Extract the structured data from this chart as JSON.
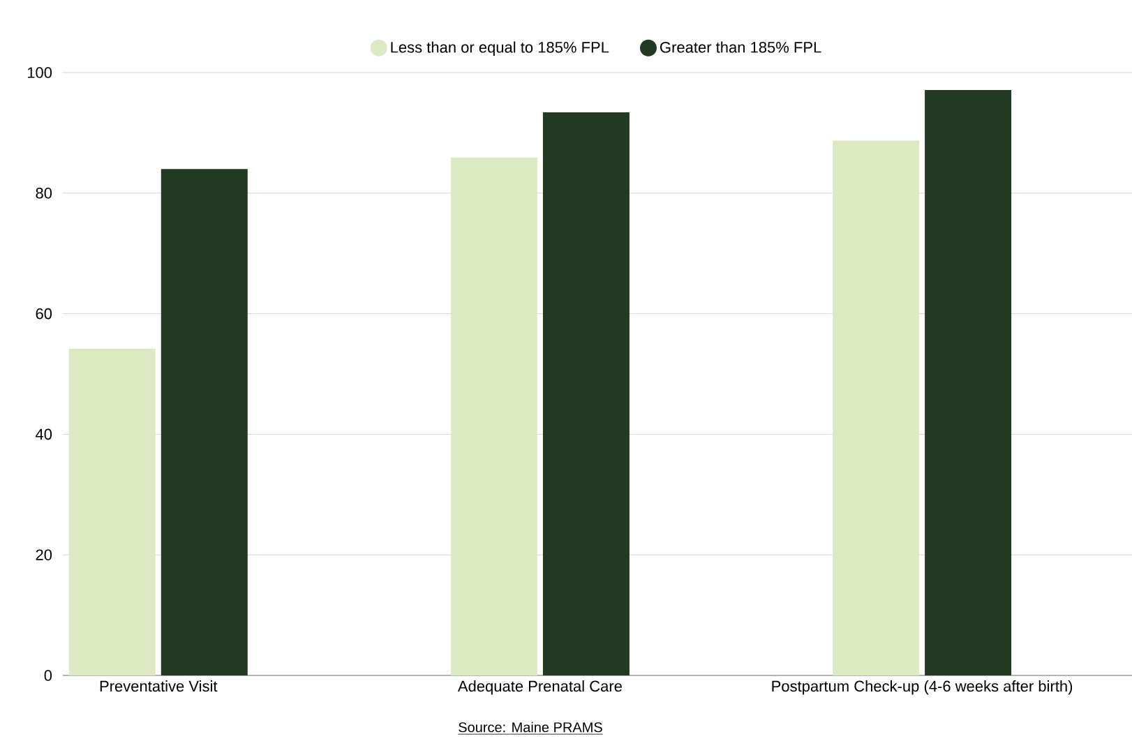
{
  "chart_data": {
    "type": "bar",
    "categories": [
      "Preventative Visit",
      "Adequate Prenatal Care",
      "Postpartum Check-up (4-6 weeks after birth)"
    ],
    "series": [
      {
        "name": "Less than or equal to 185% FPL",
        "color": "#dde9c3",
        "values": [
          54.2,
          85.9,
          88.7
        ]
      },
      {
        "name": "Greater than 185% FPL",
        "color": "#213a21",
        "values": [
          84.0,
          93.4,
          97.1
        ]
      }
    ],
    "ylim": [
      0,
      100
    ],
    "yticks": [
      0,
      20,
      40,
      60,
      80,
      100
    ],
    "grid": "y",
    "legend": "top",
    "annotations": [
      "Source: Maine PRAMS"
    ]
  }
}
